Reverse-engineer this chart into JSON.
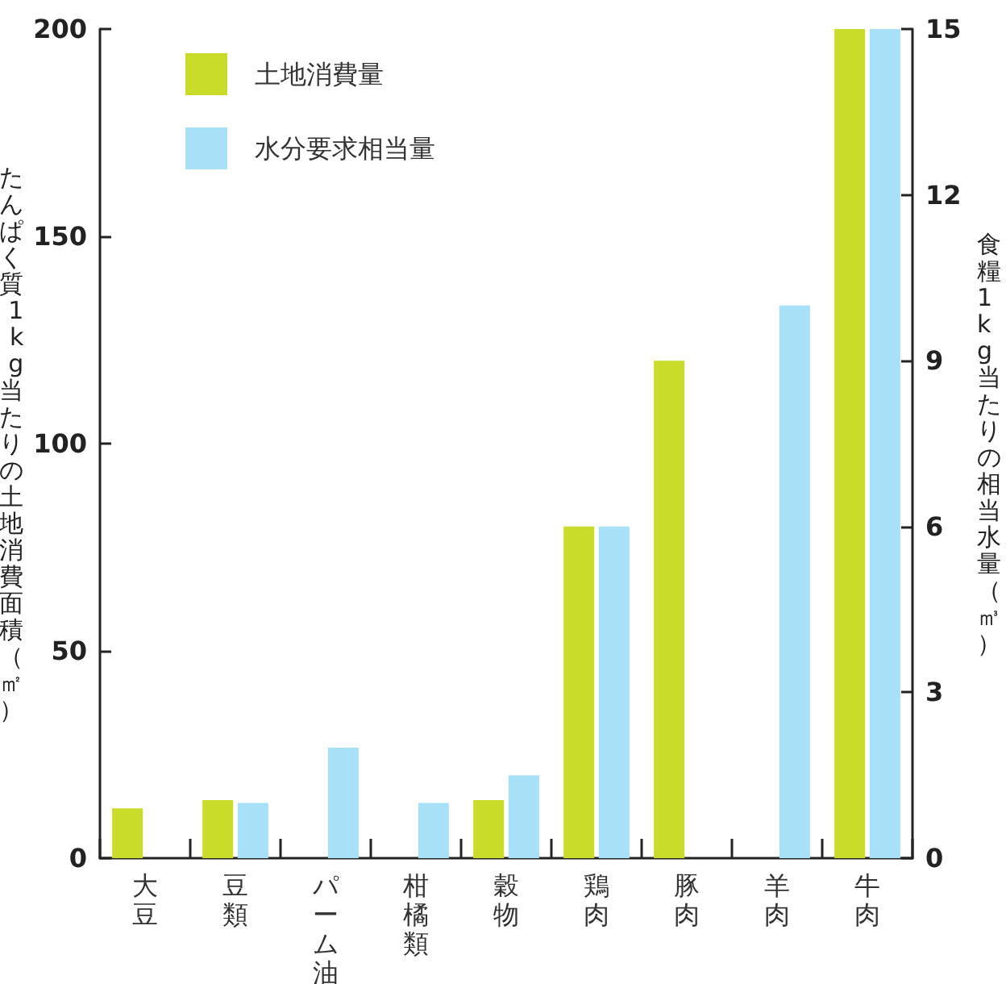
{
  "chart_data": {
    "type": "bar",
    "categories": [
      "大豆",
      "豆類",
      "パーム油",
      "柑橘類",
      "穀物",
      "鶏肉",
      "豚肉",
      "羊肉",
      "牛肉"
    ],
    "series": [
      {
        "name": "土地消費量",
        "color": "#c9dc2a",
        "values": [
          12,
          14,
          null,
          null,
          14,
          80,
          120,
          null,
          200
        ]
      },
      {
        "name": "水分要求相当量",
        "color": "#a8e0f8",
        "axis": "y2",
        "values": [
          null,
          1,
          2,
          1,
          1.5,
          6,
          null,
          10,
          15
        ]
      }
    ],
    "ylabel": "たんぱく質1kg当たりの土地消費面積（㎡）",
    "y2label": "食糧1kg当たりの相当水量（㎥）",
    "ylim": [
      0,
      200
    ],
    "yticks": [
      0,
      50,
      100,
      150,
      200
    ],
    "y2lim": [
      0,
      15
    ],
    "y2ticks": [
      0,
      3,
      6,
      9,
      12,
      15
    ],
    "legend": "top left",
    "grid": false
  }
}
